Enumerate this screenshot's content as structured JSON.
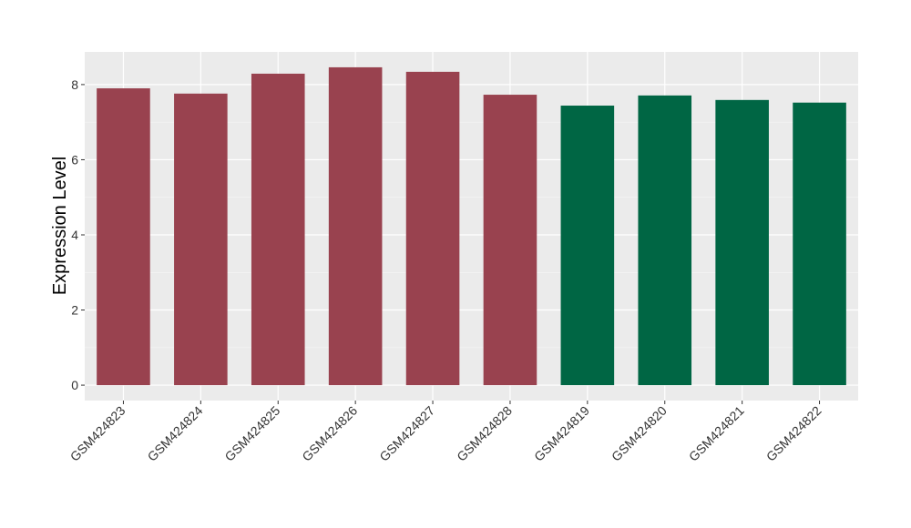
{
  "chart_data": {
    "type": "bar",
    "y_label": "Expression Level",
    "categories": [
      "GSM424823",
      "GSM424824",
      "GSM424825",
      "GSM424826",
      "GSM424827",
      "GSM424828",
      "GSM424819",
      "GSM424820",
      "GSM424821",
      "GSM424822"
    ],
    "values": [
      7.9,
      7.76,
      8.29,
      8.46,
      8.34,
      7.73,
      7.44,
      7.71,
      7.59,
      7.52
    ],
    "colors": [
      "#99424f",
      "#99424f",
      "#99424f",
      "#99424f",
      "#99424f",
      "#99424f",
      "#006644",
      "#006644",
      "#006644",
      "#006644"
    ],
    "ylim": [
      -0.41,
      8.87
    ],
    "yticks": [
      0,
      2,
      4,
      6,
      8
    ],
    "grid": true
  }
}
